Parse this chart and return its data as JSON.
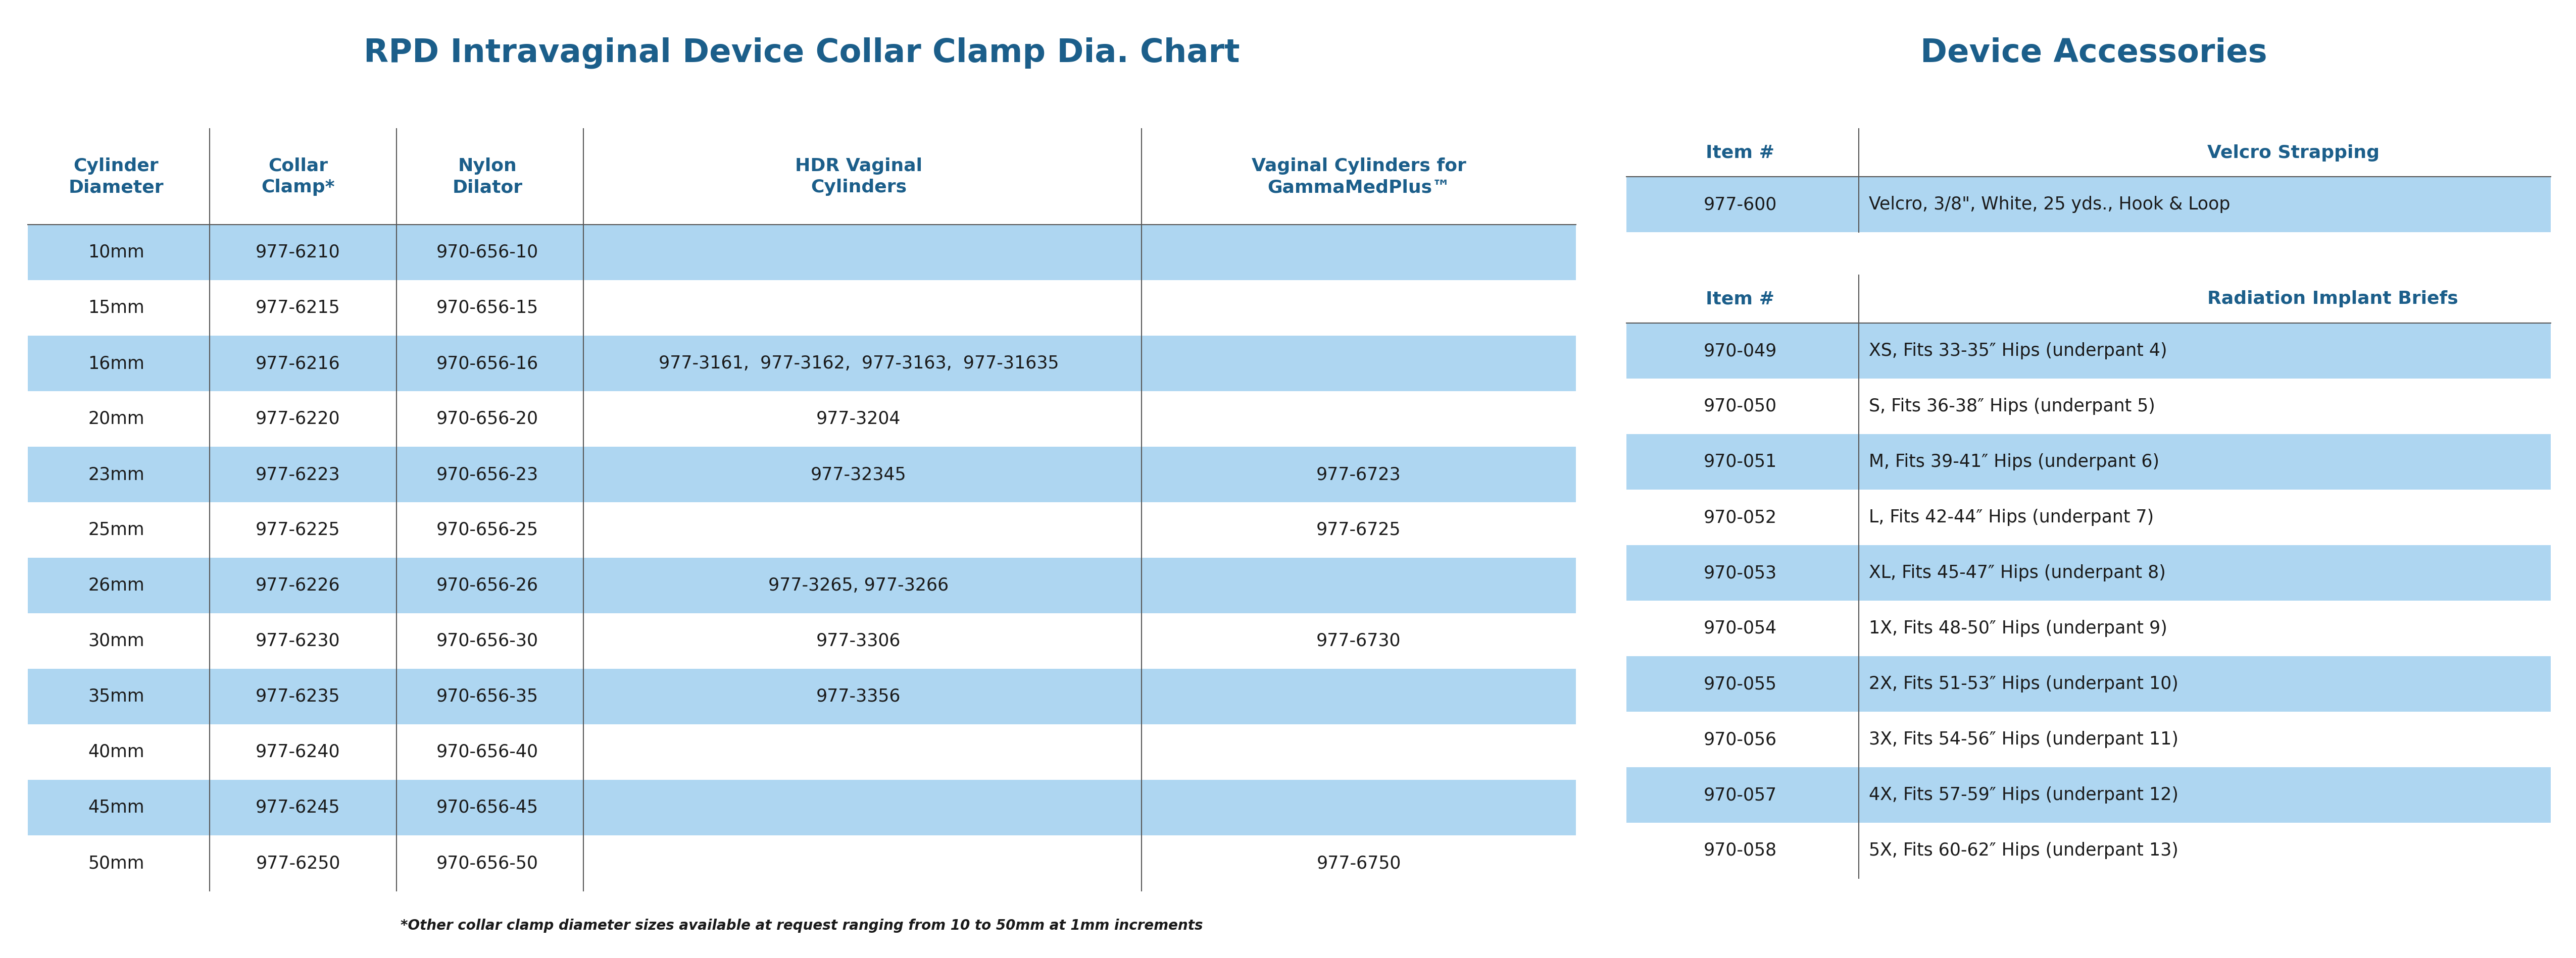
{
  "title_left": "RPD Intravaginal Device Collar Clamp Dia. Chart",
  "title_right": "Device Accessories",
  "title_color": "#1b5e8a",
  "bg_color": "#ffffff",
  "highlight_color": "#aed6f1",
  "text_color": "#1a1a1a",
  "header_color": "#1b5e8a",
  "left_table": {
    "headers": [
      "Cylinder\nDiameter",
      "Collar\nClamp*",
      "Nylon\nDilator",
      "HDR Vaginal\nCylinders",
      "Vaginal Cylinders for\nGammaMedPlus™"
    ],
    "col_align": [
      "center",
      "center",
      "center",
      "center",
      "center"
    ],
    "rows": [
      [
        "10mm",
        "977-6210",
        "970-656-10",
        "",
        ""
      ],
      [
        "15mm",
        "977-6215",
        "970-656-15",
        "",
        ""
      ],
      [
        "16mm",
        "977-6216",
        "970-656-16",
        "977-3161,  977-3162,  977-3163,  977-31635",
        ""
      ],
      [
        "20mm",
        "977-6220",
        "970-656-20",
        "977-3204",
        ""
      ],
      [
        "23mm",
        "977-6223",
        "970-656-23",
        "977-32345",
        "977-6723"
      ],
      [
        "25mm",
        "977-6225",
        "970-656-25",
        "",
        "977-6725"
      ],
      [
        "26mm",
        "977-6226",
        "970-656-26",
        "977-3265, 977-3266",
        ""
      ],
      [
        "30mm",
        "977-6230",
        "970-656-30",
        "977-3306",
        "977-6730"
      ],
      [
        "35mm",
        "977-6235",
        "970-656-35",
        "977-3356",
        ""
      ],
      [
        "40mm",
        "977-6240",
        "970-656-40",
        "",
        ""
      ],
      [
        "45mm",
        "977-6245",
        "970-656-45",
        "",
        ""
      ],
      [
        "50mm",
        "977-6250",
        "970-656-50",
        "",
        "977-6750"
      ]
    ],
    "highlight_rows": [
      0,
      2,
      4,
      6,
      8,
      10
    ]
  },
  "right_table_velcro": {
    "headers": [
      "Item #",
      "Velcro Strapping"
    ],
    "rows": [
      [
        "977-600",
        "Velcro, 3/8\", White, 25 yds., Hook & Loop"
      ]
    ],
    "highlight_rows": [
      0
    ]
  },
  "right_table_briefs": {
    "headers": [
      "Item #",
      "Radiation Implant Briefs"
    ],
    "rows": [
      [
        "970-049",
        "XS, Fits 33-35″ Hips (underpant 4)"
      ],
      [
        "970-050",
        "S, Fits 36-38″ Hips (underpant 5)"
      ],
      [
        "970-051",
        "M, Fits 39-41″ Hips (underpant 6)"
      ],
      [
        "970-052",
        "L, Fits 42-44″ Hips (underpant 7)"
      ],
      [
        "970-053",
        "XL, Fits 45-47″ Hips (underpant 8)"
      ],
      [
        "970-054",
        "1X, Fits 48-50″ Hips (underpant 9)"
      ],
      [
        "970-055",
        "2X, Fits 51-53″ Hips (underpant 10)"
      ],
      [
        "970-056",
        "3X, Fits 54-56″ Hips (underpant 11)"
      ],
      [
        "970-057",
        "4X, Fits 57-59″ Hips (underpant 12)"
      ],
      [
        "970-058",
        "5X, Fits 60-62″ Hips (underpant 13)"
      ]
    ],
    "highlight_rows": [
      0,
      2,
      4,
      6,
      8
    ]
  },
  "footnote": "*Other collar clamp diameter sizes available at request ranging from 10 to 50mm at 1mm increments"
}
